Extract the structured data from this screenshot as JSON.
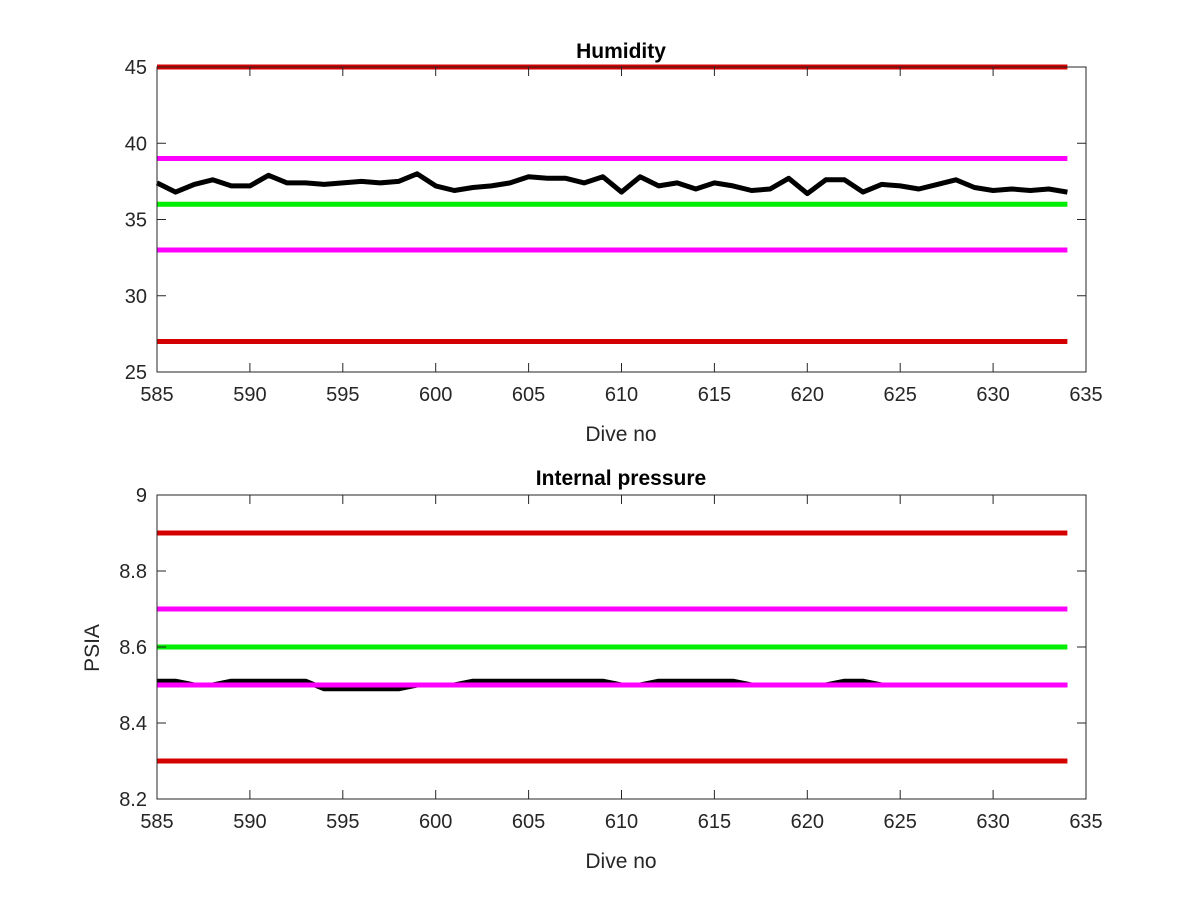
{
  "chart_data": [
    {
      "type": "line",
      "title": "Humidity",
      "xlabel": "Dive no",
      "ylabel": "",
      "xlim": [
        585,
        635
      ],
      "ylim": [
        25,
        45
      ],
      "xticks": [
        585,
        590,
        595,
        600,
        605,
        610,
        615,
        620,
        625,
        630,
        635
      ],
      "yticks": [
        25,
        30,
        35,
        40,
        45
      ],
      "grid": false,
      "colors": {
        "data": "#000000",
        "red_limit": "#d40000",
        "magenta_limit": "#ff00ff",
        "green_target": "#00ee00"
      },
      "series": [
        {
          "role": "data",
          "color": "#000000",
          "x": [
            585,
            586,
            587,
            588,
            589,
            590,
            591,
            592,
            593,
            594,
            595,
            596,
            597,
            598,
            599,
            600,
            601,
            602,
            603,
            604,
            605,
            606,
            607,
            608,
            609,
            610,
            611,
            612,
            613,
            614,
            615,
            616,
            617,
            618,
            619,
            620,
            621,
            622,
            623,
            624,
            625,
            626,
            627,
            628,
            629,
            630,
            631,
            632,
            633,
            634
          ],
          "y": [
            37.4,
            36.8,
            37.3,
            37.6,
            37.2,
            37.2,
            37.9,
            37.4,
            37.4,
            37.3,
            37.4,
            37.5,
            37.4,
            37.5,
            38.0,
            37.2,
            36.9,
            37.1,
            37.2,
            37.4,
            37.8,
            37.7,
            37.7,
            37.4,
            37.8,
            36.8,
            37.8,
            37.2,
            37.4,
            37.0,
            37.4,
            37.2,
            36.9,
            37.0,
            37.7,
            36.7,
            37.6,
            37.6,
            36.8,
            37.3,
            37.2,
            37.0,
            37.3,
            37.6,
            37.1,
            36.9,
            37.0,
            36.9,
            37.0,
            36.8
          ]
        },
        {
          "role": "upper-red-limit",
          "color": "#d40000",
          "x": [
            585,
            634
          ],
          "y": [
            45,
            45
          ]
        },
        {
          "role": "upper-magenta-limit",
          "color": "#ff00ff",
          "x": [
            585,
            634
          ],
          "y": [
            39,
            39
          ]
        },
        {
          "role": "green-target",
          "color": "#00ee00",
          "x": [
            585,
            634
          ],
          "y": [
            36,
            36
          ]
        },
        {
          "role": "lower-magenta-limit",
          "color": "#ff00ff",
          "x": [
            585,
            634
          ],
          "y": [
            33,
            33
          ]
        },
        {
          "role": "lower-red-limit",
          "color": "#d40000",
          "x": [
            585,
            634
          ],
          "y": [
            27,
            27
          ]
        }
      ]
    },
    {
      "type": "line",
      "title": "Internal pressure",
      "xlabel": "Dive no",
      "ylabel": "PSIA",
      "xlim": [
        585,
        635
      ],
      "ylim": [
        8.2,
        9
      ],
      "xticks": [
        585,
        590,
        595,
        600,
        605,
        610,
        615,
        620,
        625,
        630,
        635
      ],
      "yticks": [
        8.2,
        8.4,
        8.6,
        8.8,
        9
      ],
      "grid": false,
      "colors": {
        "data": "#000000",
        "red_limit": "#d40000",
        "magenta_limit": "#ff00ff",
        "green_target": "#00ee00"
      },
      "series": [
        {
          "role": "data",
          "color": "#000000",
          "x": [
            585,
            586,
            587,
            588,
            589,
            590,
            591,
            592,
            593,
            594,
            595,
            596,
            597,
            598,
            599,
            600,
            601,
            602,
            603,
            604,
            605,
            606,
            607,
            608,
            609,
            610,
            611,
            612,
            613,
            614,
            615,
            616,
            617,
            618,
            619,
            620,
            621,
            622,
            623,
            624,
            625,
            626,
            627,
            628,
            629,
            630,
            631,
            632,
            633,
            634
          ],
          "y": [
            8.51,
            8.51,
            8.5,
            8.5,
            8.51,
            8.51,
            8.51,
            8.51,
            8.51,
            8.49,
            8.49,
            8.49,
            8.49,
            8.49,
            8.5,
            8.5,
            8.5,
            8.51,
            8.51,
            8.51,
            8.51,
            8.51,
            8.51,
            8.51,
            8.51,
            8.5,
            8.5,
            8.51,
            8.51,
            8.51,
            8.51,
            8.51,
            8.5,
            8.5,
            8.5,
            8.5,
            8.5,
            8.51,
            8.51,
            8.5,
            8.5,
            8.5,
            8.5,
            8.5,
            8.5,
            8.5,
            8.5,
            8.5,
            8.5,
            8.5
          ]
        },
        {
          "role": "upper-red-limit",
          "color": "#d40000",
          "x": [
            585,
            634
          ],
          "y": [
            8.9,
            8.9
          ]
        },
        {
          "role": "upper-magenta-limit",
          "color": "#ff00ff",
          "x": [
            585,
            634
          ],
          "y": [
            8.7,
            8.7
          ]
        },
        {
          "role": "green-target",
          "color": "#00ee00",
          "x": [
            585,
            634
          ],
          "y": [
            8.6,
            8.6
          ]
        },
        {
          "role": "lower-magenta-limit",
          "color": "#ff00ff",
          "x": [
            585,
            634
          ],
          "y": [
            8.5,
            8.5
          ]
        },
        {
          "role": "lower-red-limit",
          "color": "#d40000",
          "x": [
            585,
            634
          ],
          "y": [
            8.3,
            8.3
          ]
        }
      ]
    }
  ]
}
